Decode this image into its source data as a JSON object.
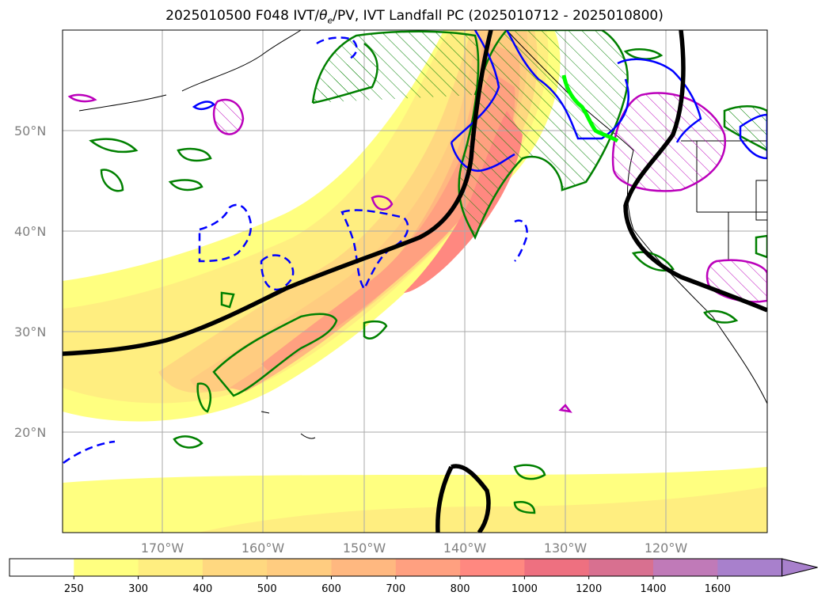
{
  "title_parts": {
    "prefix": "2025010500 F048 IVT/",
    "theta": "θ",
    "sub": "e",
    "suffix": "/PV, IVT Landfall PC (2025010712 - 2025010800)"
  },
  "map": {
    "lat_labels": [
      "50°N",
      "40°N",
      "30°N",
      "20°N"
    ],
    "lon_labels": [
      "170°W",
      "160°W",
      "150°W",
      "140°W",
      "130°W",
      "120°W"
    ],
    "lat_values": [
      50,
      40,
      30,
      20
    ],
    "lon_values": [
      -170,
      -160,
      -150,
      -140,
      -130,
      -120
    ]
  },
  "colorbar": {
    "levels": [
      "250",
      "300",
      "400",
      "500",
      "600",
      "700",
      "800",
      "1000",
      "1200",
      "1400",
      "1600"
    ],
    "colors": [
      "#ffffff",
      "#ffff80",
      "#ffee80",
      "#ffd880",
      "#ffcc80",
      "#ffb880",
      "#ffa080",
      "#ff8880",
      "#ee7080",
      "#d87090",
      "#c07ab8",
      "#a880cc"
    ],
    "extend": "max"
  },
  "colors": {
    "theta_e_contour": "#000000",
    "pv_positive": "#008000",
    "pv_negative": "#0000ff",
    "pv_high": "#bb00bb",
    "landfall_point": "#00ff00"
  }
}
